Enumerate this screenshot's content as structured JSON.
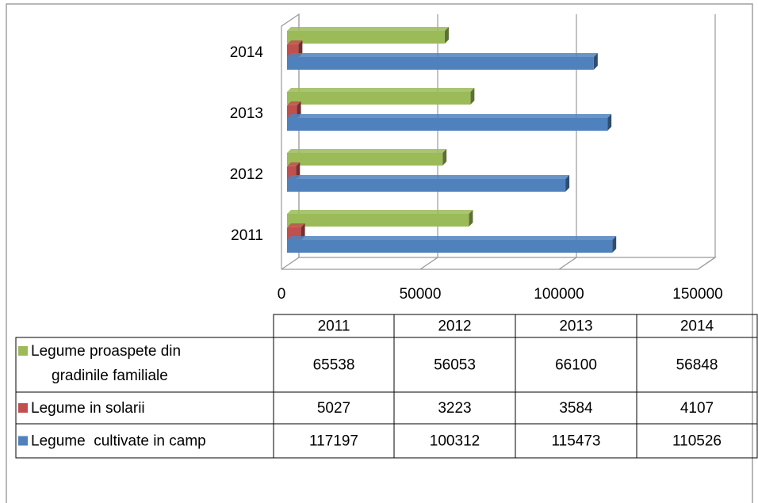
{
  "chart_data": {
    "type": "bar",
    "orientation": "horizontal",
    "categories": [
      "2011",
      "2012",
      "2013",
      "2014"
    ],
    "series": [
      {
        "name": "Legume proaspete din gradinile familiale",
        "color": "#9bbb59",
        "values": [
          65538,
          56053,
          66100,
          56848
        ]
      },
      {
        "name": "Legume in solarii",
        "color": "#c0504d",
        "values": [
          5027,
          3223,
          3584,
          4107
        ]
      },
      {
        "name": "Legume  cultivate in camp",
        "color": "#4f81bd",
        "values": [
          117197,
          100312,
          115473,
          110526
        ]
      }
    ],
    "xlim": [
      0,
      150000
    ],
    "xticks": [
      0,
      50000,
      100000,
      150000
    ],
    "grid": true,
    "data_table": true
  }
}
